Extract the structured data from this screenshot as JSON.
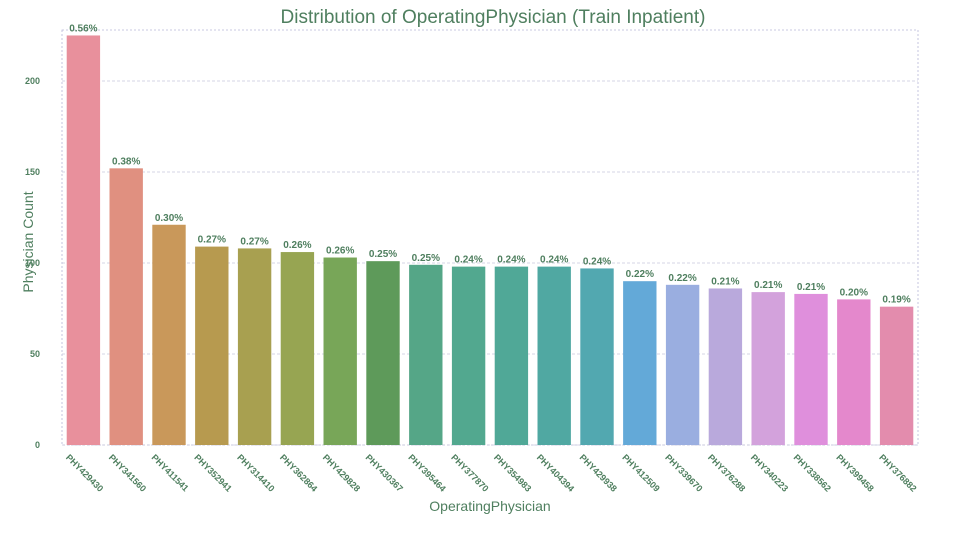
{
  "chart_data": {
    "type": "bar",
    "title": "Distribution of  OperatingPhysician (Train Inpatient)",
    "xlabel": "OperatingPhysician",
    "ylabel": "Physician Count",
    "ylim": [
      0,
      228
    ],
    "yticks": [
      0,
      50,
      100,
      150,
      200
    ],
    "grid": true,
    "categories": [
      "PHY429430",
      "PHY341560",
      "PHY411541",
      "PHY352941",
      "PHY314410",
      "PHY362864",
      "PHY429828",
      "PHY430367",
      "PHY395464",
      "PHY377870",
      "PHY354983",
      "PHY404394",
      "PHY429938",
      "PHY412509",
      "PHY339670",
      "PHY376288",
      "PHY340223",
      "PHY338562",
      "PHY399458",
      "PHY376882"
    ],
    "values": [
      225,
      152,
      121,
      109,
      108,
      106,
      103,
      101,
      99,
      98,
      98,
      98,
      97,
      90,
      88,
      86,
      84,
      83,
      80,
      76
    ],
    "labels": [
      "0.56%",
      "0.38%",
      "0.30%",
      "0.27%",
      "0.27%",
      "0.26%",
      "0.26%",
      "0.25%",
      "0.25%",
      "0.24%",
      "0.24%",
      "0.24%",
      "0.24%",
      "0.22%",
      "0.22%",
      "0.21%",
      "0.21%",
      "0.21%",
      "0.20%",
      "0.19%"
    ],
    "colors": [
      "#e8909c",
      "#e09080",
      "#c9985a",
      "#b79a4f",
      "#a8a050",
      "#97a552",
      "#78a658",
      "#5e9a5a",
      "#55a687",
      "#52a88f",
      "#50a897",
      "#50a8a2",
      "#52a8b0",
      "#63a9d8",
      "#9aaee0",
      "#b9a9dc",
      "#d3a2dc",
      "#df8fdc",
      "#e488cc",
      "#e38cad"
    ]
  }
}
